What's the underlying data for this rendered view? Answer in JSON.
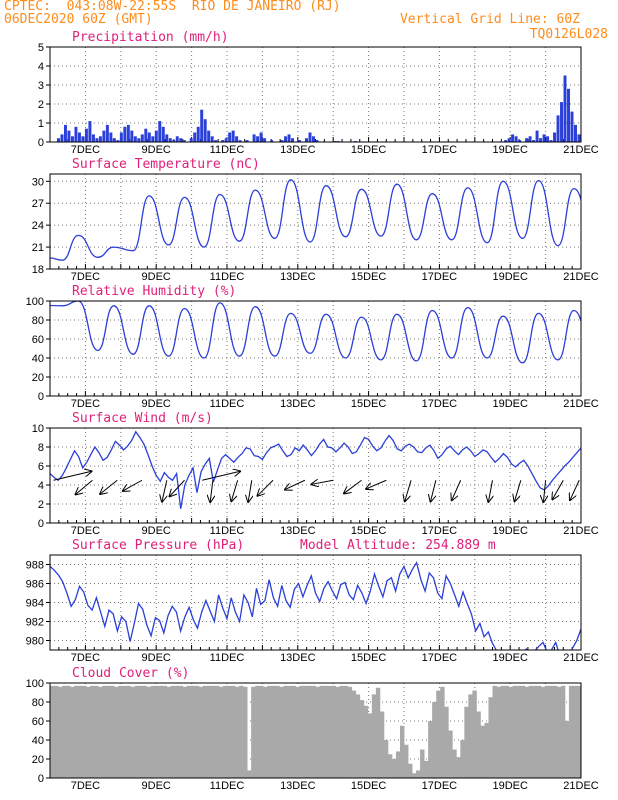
{
  "header": {
    "line1_left": "CPTEC:  043:08W-22:55S  RIO DE JANEIRO (RJ)",
    "line2_left": "06DEC2020 60Z (GMT)",
    "line1_right": "Vertical Grid Line: 60Z",
    "line2_right": "TQ0126L028"
  },
  "colors": {
    "line": "#2b3fd9",
    "bar": "#2b3fd9",
    "cloud": "#a9a9a9",
    "title": "#e0207a",
    "header": "#ff8c1a"
  },
  "x_axis": {
    "tick_labels": [
      "7DEC",
      "9DEC",
      "11DEC",
      "13DEC",
      "15DEC",
      "17DEC",
      "19DEC",
      "21DEC"
    ],
    "day_start": 6,
    "day_end": 21
  },
  "chart_data": [
    {
      "type": "bar",
      "title": "Precipitation (mm/h)",
      "ylim": [
        0,
        5
      ],
      "yticks": [
        "0",
        "1",
        "2",
        "3",
        "4",
        "5"
      ],
      "values": [
        0,
        0,
        0.2,
        0.4,
        0.9,
        0.6,
        0.3,
        0.8,
        0.5,
        0.3,
        0.7,
        1.1,
        0.4,
        0.2,
        0.3,
        0.6,
        0.9,
        0.5,
        0.2,
        0.1,
        0.5,
        0.8,
        0.9,
        0.6,
        0.3,
        0.2,
        0.4,
        0.7,
        0.5,
        0.3,
        0.6,
        1.1,
        0.8,
        0.4,
        0.2,
        0.1,
        0.3,
        0.2,
        0.1,
        0,
        0.2,
        0.5,
        0.8,
        1.7,
        1.2,
        0.6,
        0.3,
        0.1,
        0,
        0.1,
        0.2,
        0.5,
        0.6,
        0.3,
        0.1,
        0,
        0.1,
        0,
        0.4,
        0.3,
        0.5,
        0.2,
        0,
        0.1,
        0,
        0,
        0.1,
        0.3,
        0.4,
        0.2,
        0,
        0.1,
        0,
        0.2,
        0.5,
        0.3,
        0.1,
        0,
        0,
        0,
        0,
        0.05,
        0.05,
        0,
        0,
        0,
        0,
        0.05,
        0,
        0,
        0,
        0,
        0,
        0,
        0,
        0,
        0,
        0,
        0,
        0,
        0,
        0,
        0,
        0,
        0,
        0,
        0,
        0,
        0,
        0,
        0,
        0,
        0,
        0,
        0,
        0,
        0,
        0,
        0,
        0,
        0,
        0,
        0,
        0,
        0,
        0,
        0,
        0,
        0,
        0,
        0.1,
        0.2,
        0.4,
        0.3,
        0.1,
        0,
        0.2,
        0.3,
        0.1,
        0.6,
        0.2,
        0.4,
        0.3,
        0.1,
        0.5,
        1.4,
        2.1,
        3.5,
        2.8,
        1.6,
        0.9,
        0.4
      ]
    },
    {
      "type": "line",
      "title": "Surface Temperature (nC)",
      "ylim": [
        18,
        31
      ],
      "yticks": [
        "18",
        "21",
        "24",
        "27",
        "30"
      ],
      "daily_min": [
        19.2,
        19.6,
        20.5,
        21.3,
        21.0,
        21.8,
        22.2,
        21.7,
        22.4,
        22.5,
        22.0,
        22.0,
        21.6,
        22.2,
        21.2,
        22.8
      ],
      "daily_max": [
        22.6,
        21.0,
        28.0,
        27.8,
        28.2,
        28.8,
        30.2,
        29.4,
        28.9,
        29.6,
        28.3,
        29.1,
        30.0,
        30.1,
        29.0,
        27.5
      ]
    },
    {
      "type": "line",
      "title": "Relative Humidity (%)",
      "ylim": [
        0,
        100
      ],
      "yticks": [
        "0",
        "20",
        "40",
        "60",
        "80",
        "100"
      ],
      "daily_min": [
        95,
        48,
        44,
        42,
        40,
        42,
        42,
        45,
        40,
        38,
        37,
        40,
        40,
        35,
        38,
        45
      ],
      "daily_max": [
        100,
        95,
        95,
        92,
        98,
        94,
        87,
        86,
        83,
        86,
        90,
        93,
        84,
        87,
        90,
        88
      ]
    },
    {
      "type": "line",
      "title": "Surface Wind (m/s)",
      "ylim": [
        0,
        10
      ],
      "yticks": [
        "0",
        "2",
        "4",
        "6",
        "8",
        "10"
      ],
      "speed": [
        5.2,
        4.8,
        4.5,
        5.0,
        5.8,
        6.7,
        7.6,
        7.0,
        5.8,
        6.4,
        7.2,
        8.0,
        7.4,
        6.6,
        6.9,
        7.7,
        8.6,
        8.2,
        7.7,
        8.1,
        8.7,
        9.6,
        9.0,
        8.3,
        7.2,
        6.0,
        5.0,
        4.4,
        5.3,
        4.8,
        4.5,
        5.2,
        1.5,
        4.0,
        5.0,
        5.8,
        3.2,
        5.4,
        6.2,
        6.8,
        4.3,
        5.6,
        6.8,
        7.2,
        6.8,
        6.4,
        6.9,
        7.3,
        7.9,
        7.8,
        7.1,
        7.0,
        6.7,
        7.4,
        7.9,
        8.1,
        8.3,
        7.6,
        7.0,
        7.2,
        7.9,
        7.6,
        8.2,
        7.7,
        7.1,
        7.6,
        8.3,
        8.8,
        8.0,
        7.9,
        7.5,
        7.9,
        8.4,
        8.0,
        7.3,
        7.5,
        8.2,
        9.0,
        8.8,
        8.1,
        7.6,
        7.9,
        8.6,
        9.2,
        8.7,
        7.8,
        7.6,
        8.1,
        8.3,
        8.0,
        7.5,
        7.4,
        7.9,
        8.2,
        7.6,
        6.8,
        7.2,
        7.8,
        8.1,
        7.6,
        7.2,
        7.7,
        8.0,
        7.6,
        7.0,
        7.3,
        7.7,
        7.5,
        6.9,
        6.4,
        6.8,
        7.3,
        6.9,
        6.2,
        5.9,
        6.3,
        6.6,
        6.0,
        5.2,
        4.4,
        3.7,
        3.5,
        3.9,
        4.5,
        5.0,
        5.5,
        6.0,
        6.4,
        6.9,
        7.4,
        7.9
      ],
      "arrows": [
        {
          "day": 6.1,
          "dx": -4,
          "dy": 1.4
        },
        {
          "day": 7.2,
          "dx": 1.2,
          "dy": 1.0
        },
        {
          "day": 7.9,
          "dx": 2.0,
          "dy": 1.6
        },
        {
          "day": 8.6,
          "dx": 1.8,
          "dy": 1.0
        },
        {
          "day": 9.3,
          "dx": 0.5,
          "dy": 2.2
        },
        {
          "day": 9.8,
          "dx": 1.3,
          "dy": 1.4
        },
        {
          "day": 10.3,
          "dx": -1.2,
          "dy": 0.8
        },
        {
          "day": 10.6,
          "dx": 0.3,
          "dy": 2.5
        },
        {
          "day": 11.3,
          "dx": 0.6,
          "dy": 2.0
        },
        {
          "day": 11.7,
          "dx": 0.4,
          "dy": 2.4
        },
        {
          "day": 12.3,
          "dx": 1.4,
          "dy": 1.4
        },
        {
          "day": 13.2,
          "dx": 1.5,
          "dy": 0.7
        },
        {
          "day": 14.0,
          "dx": 1.6,
          "dy": 0.3
        },
        {
          "day": 14.8,
          "dx": 1.2,
          "dy": 0.9
        },
        {
          "day": 15.5,
          "dx": 1.4,
          "dy": 0.6
        },
        {
          "day": 16.2,
          "dx": 0.6,
          "dy": 2.0
        },
        {
          "day": 16.9,
          "dx": 0.5,
          "dy": 2.0
        },
        {
          "day": 17.6,
          "dx": 0.8,
          "dy": 1.8
        },
        {
          "day": 18.5,
          "dx": 0.4,
          "dy": 2.1
        },
        {
          "day": 19.3,
          "dx": 0.3,
          "dy": 1.0
        },
        {
          "day": 20.0,
          "dx": 0.2,
          "dy": 2.0
        },
        {
          "day": 20.5,
          "dx": 0.8,
          "dy": 1.4
        },
        {
          "day": 20.95,
          "dx": 0.7,
          "dy": 1.5
        }
      ]
    },
    {
      "type": "line",
      "title": "Surface Pressure (hPa)",
      "annotation": "Model Altitude: 254.889 m",
      "ylim": [
        979,
        989
      ],
      "yticks": [
        "980",
        "982",
        "984",
        "986",
        "988"
      ],
      "values": [
        987.8,
        987.4,
        986.9,
        986.2,
        985.0,
        983.6,
        984.3,
        985.7,
        985.1,
        983.7,
        983.2,
        984.5,
        983.0,
        981.5,
        983.2,
        982.8,
        981.0,
        982.5,
        982.0,
        979.9,
        981.8,
        983.9,
        983.3,
        981.6,
        980.5,
        982.4,
        982.1,
        980.8,
        982.6,
        983.6,
        983.0,
        981.0,
        982.5,
        983.5,
        982.2,
        981.3,
        983.0,
        984.2,
        983.1,
        982.0,
        984.8,
        983.4,
        982.3,
        984.5,
        983.0,
        982.0,
        984.8,
        984.0,
        982.5,
        985.5,
        983.8,
        984.2,
        986.4,
        984.5,
        983.6,
        985.8,
        984.2,
        983.5,
        985.4,
        986.0,
        984.6,
        985.8,
        986.8,
        985.0,
        984.1,
        985.5,
        986.2,
        985.2,
        984.4,
        985.9,
        986.1,
        984.8,
        984.3,
        985.8,
        985.0,
        983.9,
        985.2,
        987.0,
        985.7,
        984.6,
        986.3,
        986.6,
        985.2,
        987.0,
        987.8,
        986.6,
        987.5,
        988.2,
        986.4,
        985.2,
        987.1,
        986.6,
        985.0,
        984.4,
        986.8,
        986.0,
        984.8,
        983.6,
        985.1,
        983.9,
        982.8,
        981.0,
        981.8,
        980.4,
        980.9,
        979.7,
        978.9,
        978.4,
        978.6,
        978.9,
        978.1,
        977.6,
        978.4,
        979.1,
        978.6,
        978.9,
        979.4,
        979.8,
        978.7,
        979.0,
        979.8,
        978.4,
        977.9,
        978.2,
        979.2,
        980.0,
        981.2
      ]
    },
    {
      "type": "area",
      "title": "Cloud Cover (%)",
      "ylim": [
        0,
        100
      ],
      "yticks": [
        "0",
        "20",
        "40",
        "60",
        "80",
        "100"
      ],
      "values": [
        97,
        97,
        96,
        97,
        97,
        96,
        97,
        97,
        97,
        96,
        97,
        97,
        96,
        97,
        97,
        97,
        96,
        97,
        97,
        97,
        96,
        97,
        97,
        97,
        96,
        97,
        97,
        97,
        97,
        96,
        97,
        97,
        97,
        96,
        97,
        97,
        97,
        96,
        97,
        97,
        97,
        97,
        96,
        97,
        97,
        97,
        96,
        97,
        96,
        8,
        96,
        97,
        97,
        96,
        97,
        97,
        97,
        96,
        97,
        97,
        97,
        96,
        97,
        97,
        97,
        97,
        96,
        97,
        97,
        97,
        97,
        96,
        97,
        97,
        96,
        92,
        88,
        82,
        76,
        68,
        88,
        95,
        70,
        40,
        25,
        20,
        28,
        55,
        35,
        15,
        5,
        8,
        30,
        18,
        60,
        80,
        92,
        96,
        75,
        50,
        30,
        22,
        40,
        75,
        88,
        92,
        70,
        55,
        58,
        85,
        97,
        96,
        97,
        97,
        96,
        97,
        97,
        97,
        96,
        97,
        97,
        97,
        96,
        97,
        97,
        97,
        96,
        97,
        60,
        97,
        97,
        97
      ]
    }
  ]
}
